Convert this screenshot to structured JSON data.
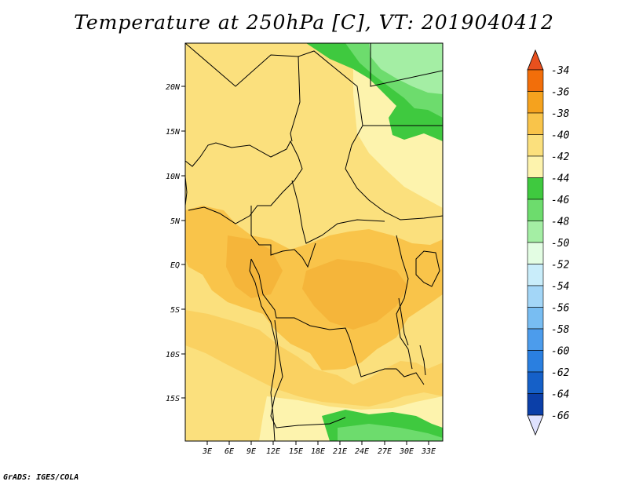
{
  "title": "Temperature at 250hPa [C], VT: 2019040412",
  "credit": "GrADS: IGES/COLA",
  "map": {
    "lat_labels": [
      "20N",
      "15N",
      "10N",
      "5N",
      "EQ",
      "5S",
      "10S",
      "15S"
    ],
    "lon_labels": [
      "3E",
      "6E",
      "9E",
      "12E",
      "15E",
      "18E",
      "21E",
      "24E",
      "27E",
      "30E",
      "33E"
    ]
  },
  "legend": {
    "labels": [
      "-34",
      "-36",
      "-38",
      "-40",
      "-42",
      "-44",
      "-46",
      "-48",
      "-50",
      "-52",
      "-54",
      "-56",
      "-58",
      "-60",
      "-62",
      "-64",
      "-66"
    ],
    "colors": [
      "#e8501e",
      "#f26e0a",
      "#f5a21e",
      "#f9c44a",
      "#fbe07d",
      "#fdf3ad",
      "#3fc93f",
      "#6ddc6d",
      "#a4eea4",
      "#e3fde3",
      "#c9edfa",
      "#a3d6f7",
      "#78bdf2",
      "#4c9cec",
      "#2a7fe0",
      "#1560c8",
      "#0b3fa8",
      "#0a1a78",
      "#dfe2ff"
    ]
  }
}
